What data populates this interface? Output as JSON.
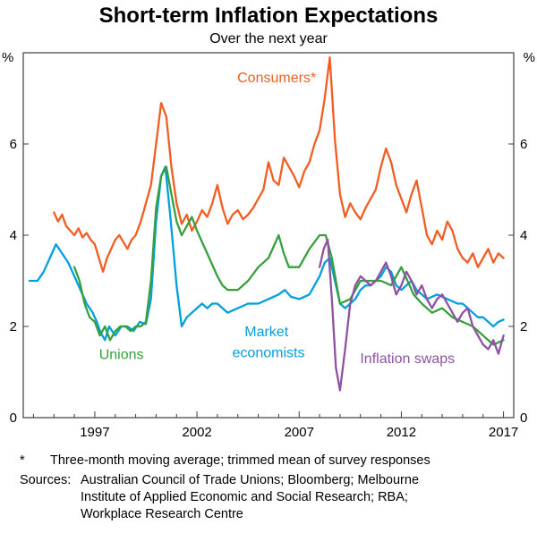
{
  "header": {
    "title": "Short-term Inflation Expectations",
    "subtitle": "Over the next year"
  },
  "notes": {
    "footnote_marker": "*",
    "footnote": "Three-month moving average; trimmed mean of survey responses",
    "sources_label": "Sources:",
    "sources": "Australian Council of Trade Unions; Bloomberg; Melbourne Institute of Applied Economic and Social Research; RBA; Workplace Research Centre"
  },
  "chart_data": {
    "type": "line",
    "title": "Short-term Inflation Expectations",
    "subtitle": "Over the next year",
    "ylabel": "%",
    "ylabel_right": "%",
    "ylim": [
      0,
      8
    ],
    "xlim": [
      1993.5,
      2017.5
    ],
    "y_ticks": [
      0,
      2,
      4,
      6
    ],
    "x_ticks": [
      1997,
      2002,
      2007,
      2012,
      2017
    ],
    "grid": false,
    "legend": "inline-labels",
    "frame_color": "#3c3c3c",
    "annotations": [
      {
        "text": "Consumers*",
        "x": 2005.9,
        "y": 7.35,
        "color": "#f15d22"
      },
      {
        "text": "Market",
        "x": 2005.4,
        "y": 1.78,
        "color": "#009fdf"
      },
      {
        "text": "economists",
        "x": 2005.5,
        "y": 1.32,
        "color": "#009fdf"
      },
      {
        "text": "Unions",
        "x": 1998.3,
        "y": 1.28,
        "color": "#37a03c"
      },
      {
        "text": "Inflation swaps",
        "x": 2012.3,
        "y": 1.2,
        "color": "#8e52a1"
      }
    ],
    "series": [
      {
        "name": "Consumers*",
        "color": "#f15d22",
        "points": [
          [
            1995.0,
            4.5
          ],
          [
            1995.2,
            4.3
          ],
          [
            1995.4,
            4.45
          ],
          [
            1995.6,
            4.2
          ],
          [
            1995.8,
            4.1
          ],
          [
            1996.0,
            4.0
          ],
          [
            1996.2,
            4.15
          ],
          [
            1996.4,
            3.95
          ],
          [
            1996.6,
            4.05
          ],
          [
            1996.8,
            3.9
          ],
          [
            1997.0,
            3.8
          ],
          [
            1997.2,
            3.5
          ],
          [
            1997.4,
            3.2
          ],
          [
            1997.6,
            3.5
          ],
          [
            1997.8,
            3.7
          ],
          [
            1998.0,
            3.9
          ],
          [
            1998.2,
            4.0
          ],
          [
            1998.4,
            3.85
          ],
          [
            1998.6,
            3.7
          ],
          [
            1998.8,
            3.9
          ],
          [
            1999.0,
            4.0
          ],
          [
            1999.25,
            4.3
          ],
          [
            1999.5,
            4.7
          ],
          [
            1999.75,
            5.1
          ],
          [
            2000.0,
            6.0
          ],
          [
            2000.25,
            6.9
          ],
          [
            2000.5,
            6.6
          ],
          [
            2000.75,
            5.5
          ],
          [
            2001.0,
            4.7
          ],
          [
            2001.25,
            4.25
          ],
          [
            2001.5,
            4.45
          ],
          [
            2001.75,
            4.1
          ],
          [
            2002.0,
            4.3
          ],
          [
            2002.25,
            4.55
          ],
          [
            2002.5,
            4.4
          ],
          [
            2002.75,
            4.7
          ],
          [
            2003.0,
            5.1
          ],
          [
            2003.25,
            4.6
          ],
          [
            2003.5,
            4.25
          ],
          [
            2003.75,
            4.45
          ],
          [
            2004.0,
            4.55
          ],
          [
            2004.25,
            4.35
          ],
          [
            2004.5,
            4.45
          ],
          [
            2004.75,
            4.6
          ],
          [
            2005.0,
            4.8
          ],
          [
            2005.25,
            5.0
          ],
          [
            2005.5,
            5.6
          ],
          [
            2005.75,
            5.2
          ],
          [
            2006.0,
            5.1
          ],
          [
            2006.25,
            5.7
          ],
          [
            2006.5,
            5.5
          ],
          [
            2006.75,
            5.3
          ],
          [
            2007.0,
            5.05
          ],
          [
            2007.25,
            5.4
          ],
          [
            2007.5,
            5.6
          ],
          [
            2007.75,
            6.0
          ],
          [
            2008.0,
            6.3
          ],
          [
            2008.25,
            7.0
          ],
          [
            2008.5,
            7.9
          ],
          [
            2008.75,
            6.1
          ],
          [
            2009.0,
            4.9
          ],
          [
            2009.25,
            4.4
          ],
          [
            2009.5,
            4.7
          ],
          [
            2009.75,
            4.5
          ],
          [
            2010.0,
            4.35
          ],
          [
            2010.25,
            4.6
          ],
          [
            2010.5,
            4.8
          ],
          [
            2010.75,
            5.0
          ],
          [
            2011.0,
            5.5
          ],
          [
            2011.25,
            5.9
          ],
          [
            2011.5,
            5.6
          ],
          [
            2011.75,
            5.1
          ],
          [
            2012.0,
            4.8
          ],
          [
            2012.25,
            4.5
          ],
          [
            2012.5,
            4.9
          ],
          [
            2012.75,
            5.2
          ],
          [
            2013.0,
            4.6
          ],
          [
            2013.25,
            4.0
          ],
          [
            2013.5,
            3.8
          ],
          [
            2013.75,
            4.1
          ],
          [
            2014.0,
            3.9
          ],
          [
            2014.25,
            4.3
          ],
          [
            2014.5,
            4.1
          ],
          [
            2014.75,
            3.7
          ],
          [
            2015.0,
            3.5
          ],
          [
            2015.25,
            3.4
          ],
          [
            2015.5,
            3.6
          ],
          [
            2015.75,
            3.3
          ],
          [
            2016.0,
            3.5
          ],
          [
            2016.25,
            3.7
          ],
          [
            2016.5,
            3.4
          ],
          [
            2016.75,
            3.6
          ],
          [
            2017.0,
            3.5
          ]
        ]
      },
      {
        "name": "Market economists",
        "color": "#009fdf",
        "points": [
          [
            1993.8,
            3.0
          ],
          [
            1994.2,
            3.0
          ],
          [
            1994.5,
            3.2
          ],
          [
            1994.8,
            3.5
          ],
          [
            1995.1,
            3.8
          ],
          [
            1995.4,
            3.6
          ],
          [
            1995.7,
            3.4
          ],
          [
            1996.0,
            3.1
          ],
          [
            1996.3,
            2.8
          ],
          [
            1996.6,
            2.5
          ],
          [
            1996.9,
            2.3
          ],
          [
            1997.1,
            2.1
          ],
          [
            1997.3,
            1.85
          ],
          [
            1997.5,
            1.7
          ],
          [
            1997.7,
            2.0
          ],
          [
            1998.0,
            1.8
          ],
          [
            1998.3,
            2.0
          ],
          [
            1998.6,
            2.0
          ],
          [
            1998.9,
            1.9
          ],
          [
            1999.2,
            2.1
          ],
          [
            1999.5,
            2.05
          ],
          [
            1999.75,
            2.6
          ],
          [
            2000.0,
            4.3
          ],
          [
            2000.25,
            5.3
          ],
          [
            2000.45,
            5.5
          ],
          [
            2000.7,
            4.4
          ],
          [
            2001.0,
            2.9
          ],
          [
            2001.25,
            2.0
          ],
          [
            2001.5,
            2.2
          ],
          [
            2001.75,
            2.3
          ],
          [
            2002.0,
            2.4
          ],
          [
            2002.25,
            2.5
          ],
          [
            2002.5,
            2.4
          ],
          [
            2002.75,
            2.5
          ],
          [
            2003.0,
            2.5
          ],
          [
            2003.25,
            2.4
          ],
          [
            2003.5,
            2.3
          ],
          [
            2004.0,
            2.4
          ],
          [
            2004.5,
            2.5
          ],
          [
            2005.0,
            2.5
          ],
          [
            2005.5,
            2.6
          ],
          [
            2006.0,
            2.7
          ],
          [
            2006.3,
            2.8
          ],
          [
            2006.6,
            2.65
          ],
          [
            2007.0,
            2.6
          ],
          [
            2007.5,
            2.7
          ],
          [
            2007.75,
            2.9
          ],
          [
            2008.0,
            3.1
          ],
          [
            2008.25,
            3.4
          ],
          [
            2008.5,
            3.5
          ],
          [
            2008.75,
            3.0
          ],
          [
            2009.0,
            2.5
          ],
          [
            2009.25,
            2.4
          ],
          [
            2009.5,
            2.5
          ],
          [
            2009.75,
            2.6
          ],
          [
            2010.0,
            2.8
          ],
          [
            2010.25,
            2.9
          ],
          [
            2010.5,
            2.9
          ],
          [
            2010.75,
            3.0
          ],
          [
            2011.0,
            3.1
          ],
          [
            2011.25,
            3.3
          ],
          [
            2011.5,
            3.2
          ],
          [
            2011.75,
            2.9
          ],
          [
            2012.0,
            2.8
          ],
          [
            2012.25,
            2.9
          ],
          [
            2012.5,
            3.0
          ],
          [
            2012.75,
            2.8
          ],
          [
            2013.0,
            2.7
          ],
          [
            2013.25,
            2.6
          ],
          [
            2013.75,
            2.7
          ],
          [
            2014.25,
            2.6
          ],
          [
            2014.75,
            2.5
          ],
          [
            2015.0,
            2.5
          ],
          [
            2015.25,
            2.4
          ],
          [
            2015.5,
            2.3
          ],
          [
            2015.75,
            2.2
          ],
          [
            2016.0,
            2.2
          ],
          [
            2016.25,
            2.1
          ],
          [
            2016.5,
            2.0
          ],
          [
            2016.75,
            2.1
          ],
          [
            2017.0,
            2.15
          ]
        ]
      },
      {
        "name": "Unions",
        "color": "#37a03c",
        "points": [
          [
            1996.0,
            3.3
          ],
          [
            1996.25,
            3.0
          ],
          [
            1996.5,
            2.5
          ],
          [
            1996.75,
            2.2
          ],
          [
            1997.0,
            2.1
          ],
          [
            1997.25,
            1.8
          ],
          [
            1997.5,
            2.0
          ],
          [
            1997.75,
            1.7
          ],
          [
            1998.0,
            1.9
          ],
          [
            1998.25,
            2.0
          ],
          [
            1998.5,
            2.0
          ],
          [
            1998.75,
            1.9
          ],
          [
            1999.0,
            2.0
          ],
          [
            1999.25,
            2.0
          ],
          [
            1999.5,
            2.1
          ],
          [
            1999.75,
            3.0
          ],
          [
            2000.0,
            4.6
          ],
          [
            2000.25,
            5.3
          ],
          [
            2000.5,
            5.5
          ],
          [
            2000.75,
            4.9
          ],
          [
            2001.0,
            4.3
          ],
          [
            2001.25,
            4.0
          ],
          [
            2001.5,
            4.2
          ],
          [
            2001.75,
            4.4
          ],
          [
            2002.0,
            4.1
          ],
          [
            2002.5,
            3.6
          ],
          [
            2003.0,
            3.1
          ],
          [
            2003.25,
            2.9
          ],
          [
            2003.5,
            2.8
          ],
          [
            2004.0,
            2.8
          ],
          [
            2004.5,
            3.0
          ],
          [
            2005.0,
            3.3
          ],
          [
            2005.5,
            3.5
          ],
          [
            2006.0,
            4.0
          ],
          [
            2006.25,
            3.6
          ],
          [
            2006.5,
            3.3
          ],
          [
            2007.0,
            3.3
          ],
          [
            2007.5,
            3.7
          ],
          [
            2008.0,
            4.0
          ],
          [
            2008.3,
            4.0
          ],
          [
            2008.6,
            3.5
          ],
          [
            2008.8,
            3.0
          ],
          [
            2009.0,
            2.5
          ],
          [
            2009.5,
            2.6
          ],
          [
            2010.0,
            3.0
          ],
          [
            2010.5,
            3.0
          ],
          [
            2011.0,
            3.0
          ],
          [
            2011.5,
            2.9
          ],
          [
            2012.0,
            3.3
          ],
          [
            2012.3,
            3.0
          ],
          [
            2012.6,
            2.7
          ],
          [
            2013.0,
            2.5
          ],
          [
            2013.5,
            2.3
          ],
          [
            2014.0,
            2.4
          ],
          [
            2014.5,
            2.2
          ],
          [
            2015.0,
            2.1
          ],
          [
            2015.5,
            2.0
          ],
          [
            2016.0,
            1.8
          ],
          [
            2016.5,
            1.6
          ],
          [
            2017.0,
            1.7
          ]
        ]
      },
      {
        "name": "Inflation swaps",
        "color": "#8e52a1",
        "points": [
          [
            2008.0,
            3.3
          ],
          [
            2008.2,
            3.7
          ],
          [
            2008.4,
            3.9
          ],
          [
            2008.6,
            2.6
          ],
          [
            2008.8,
            1.1
          ],
          [
            2009.0,
            0.6
          ],
          [
            2009.25,
            1.5
          ],
          [
            2009.5,
            2.5
          ],
          [
            2009.75,
            2.9
          ],
          [
            2010.0,
            3.1
          ],
          [
            2010.25,
            3.0
          ],
          [
            2010.5,
            2.9
          ],
          [
            2010.75,
            3.0
          ],
          [
            2011.0,
            3.2
          ],
          [
            2011.25,
            3.4
          ],
          [
            2011.5,
            3.1
          ],
          [
            2011.75,
            2.7
          ],
          [
            2012.0,
            2.9
          ],
          [
            2012.25,
            3.2
          ],
          [
            2012.5,
            3.0
          ],
          [
            2012.75,
            2.7
          ],
          [
            2013.0,
            2.9
          ],
          [
            2013.25,
            2.6
          ],
          [
            2013.5,
            2.4
          ],
          [
            2013.75,
            2.6
          ],
          [
            2014.0,
            2.7
          ],
          [
            2014.25,
            2.5
          ],
          [
            2014.5,
            2.3
          ],
          [
            2014.75,
            2.1
          ],
          [
            2015.0,
            2.3
          ],
          [
            2015.25,
            2.4
          ],
          [
            2015.5,
            2.0
          ],
          [
            2015.75,
            1.8
          ],
          [
            2016.0,
            1.6
          ],
          [
            2016.25,
            1.5
          ],
          [
            2016.5,
            1.7
          ],
          [
            2016.75,
            1.4
          ],
          [
            2017.0,
            1.8
          ]
        ]
      }
    ]
  }
}
